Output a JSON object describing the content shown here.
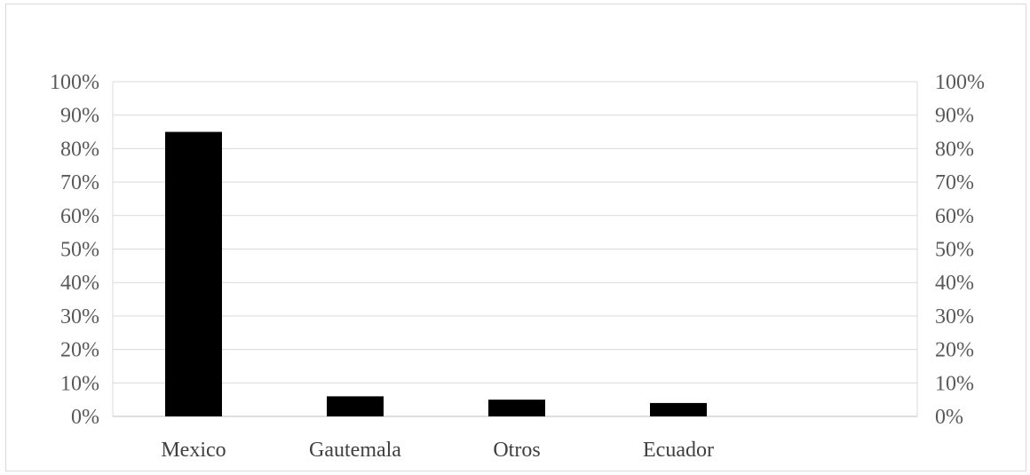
{
  "chart_data": {
    "type": "bar",
    "title": "",
    "xlabel": "",
    "ylabel": "",
    "categories": [
      "Mexico",
      "Gautemala",
      "Otros",
      "Ecuador"
    ],
    "values": [
      85,
      6,
      5,
      4
    ],
    "ylim": [
      0,
      100
    ],
    "yticks": [
      "0%",
      "10%",
      "20%",
      "30%",
      "40%",
      "50%",
      "60%",
      "70%",
      "80%",
      "90%",
      "100%"
    ],
    "secondary_yticks": [
      "0%",
      "10%",
      "20%",
      "30%",
      "40%",
      "50%",
      "60%",
      "70%",
      "80%",
      "90%",
      "100%"
    ],
    "grid": true,
    "legend": "none",
    "colors": {
      "bar": "#000000",
      "grid": "#d9d9d9",
      "axis_text": "#595959"
    }
  }
}
